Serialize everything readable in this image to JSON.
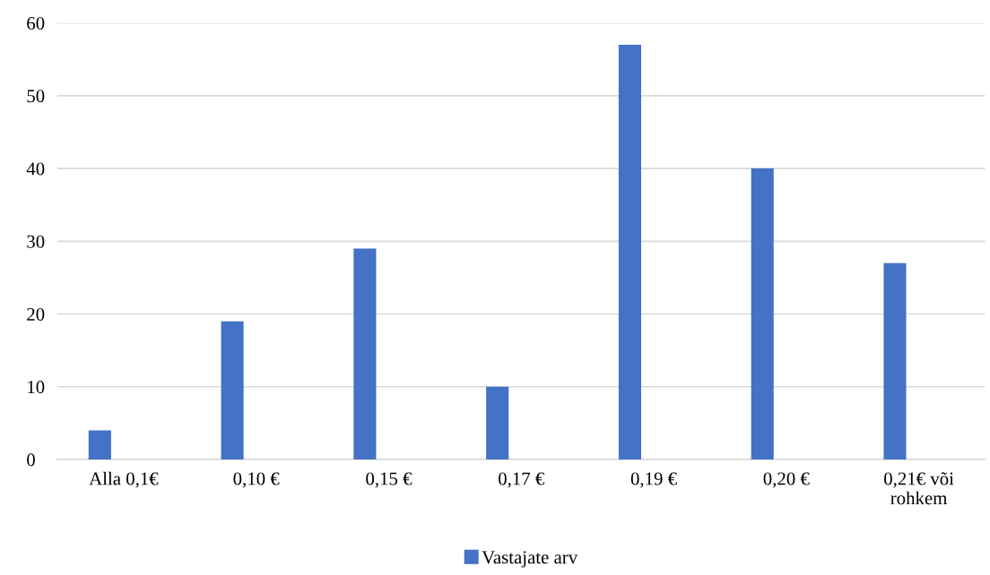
{
  "chart_data": {
    "type": "bar",
    "categories": [
      "Alla 0,1€",
      "0,10 €",
      "0,15 €",
      "0,17 €",
      "0,19 €",
      "0,20 €",
      "0,21€ või\nrohkem"
    ],
    "series": [
      {
        "name": "Vastajate arv",
        "color": "#4472c4",
        "values": [
          4,
          19,
          29,
          10,
          57,
          40,
          27
        ]
      }
    ],
    "ylim": [
      0,
      60
    ],
    "yticks": [
      0,
      10,
      20,
      30,
      40,
      50,
      60
    ],
    "grid": "y",
    "legend": "bottom"
  }
}
